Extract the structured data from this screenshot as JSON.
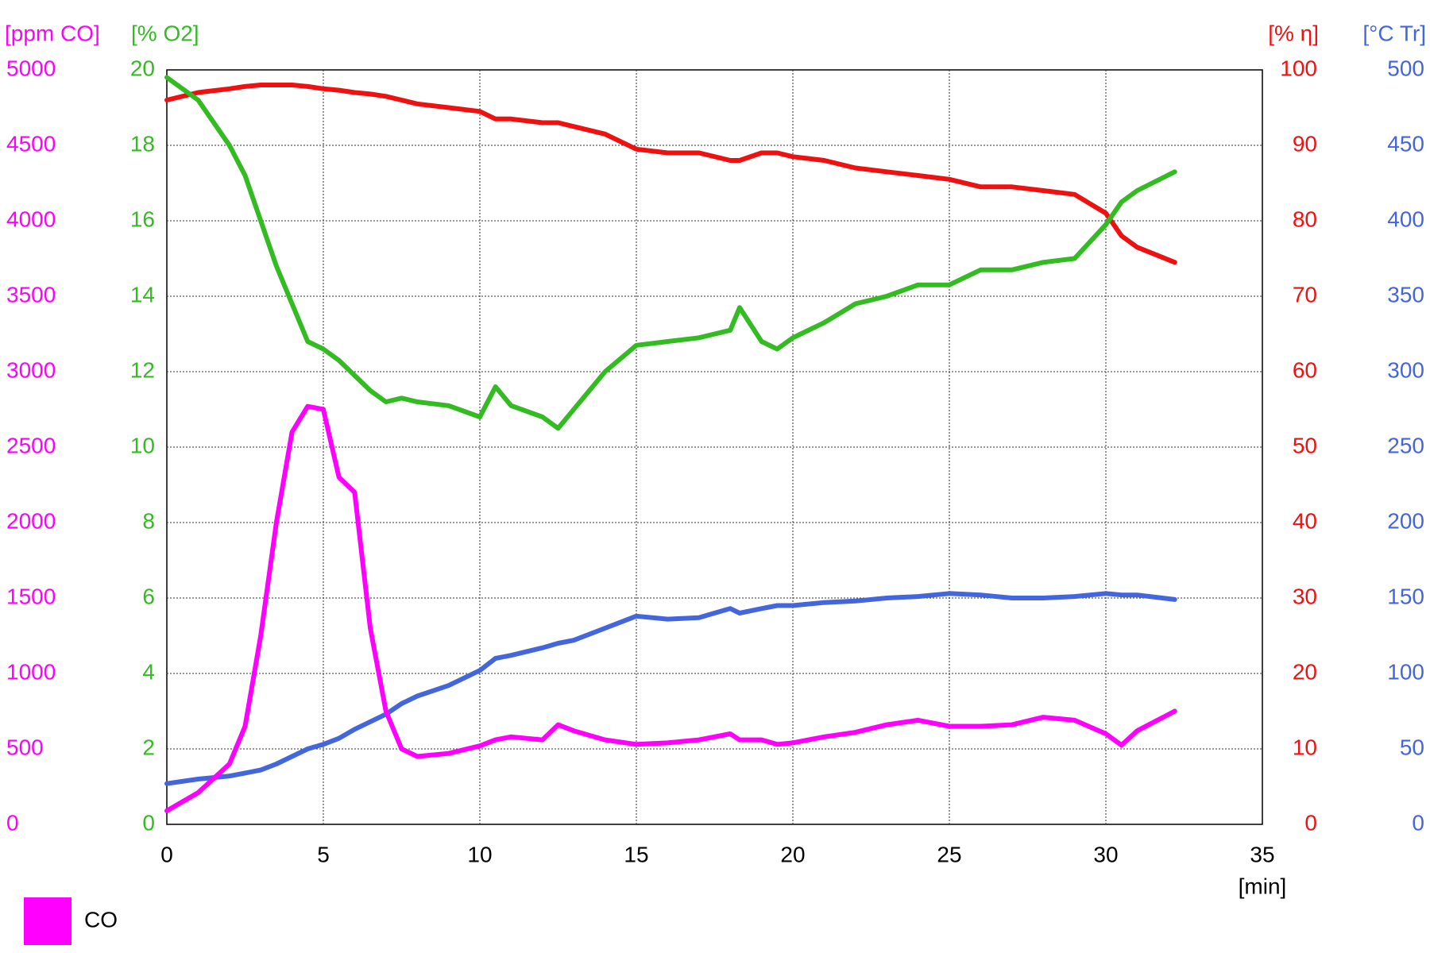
{
  "chart_data": {
    "type": "line",
    "x": [
      0,
      1,
      2,
      2.5,
      3,
      3.5,
      4,
      4.5,
      5,
      5.5,
      6,
      6.5,
      7,
      7.5,
      8,
      9,
      10,
      10.5,
      11,
      12,
      12.5,
      13,
      14,
      15,
      16,
      17,
      18,
      18.3,
      19,
      19.5,
      20,
      21,
      22,
      23,
      24,
      25,
      26,
      27,
      28,
      29,
      30,
      30.5,
      31,
      32.2
    ],
    "xlim": [
      0,
      35
    ],
    "xticks": [
      0,
      5,
      10,
      15,
      20,
      25,
      30,
      35
    ],
    "x_label": "[min]",
    "grid": true,
    "y_axes": [
      {
        "label": "[ppm CO]",
        "color": "#ff00ff",
        "ylim": [
          0,
          5000
        ],
        "yticks": [
          0,
          500,
          1000,
          1500,
          2000,
          2500,
          3000,
          3500,
          4000,
          4500,
          5000
        ]
      },
      {
        "label": "[% O2]",
        "color": "#33bb22",
        "ylim": [
          0,
          20
        ],
        "yticks": [
          0,
          2,
          4,
          6,
          8,
          10,
          12,
          14,
          16,
          18,
          20
        ]
      },
      {
        "label": "[% η]",
        "color": "#ee1111",
        "ylim": [
          0,
          100
        ],
        "yticks": [
          0,
          10,
          20,
          30,
          40,
          50,
          60,
          70,
          80,
          90,
          100
        ]
      },
      {
        "label": "[°C Tr]",
        "color": "#4466dd",
        "ylim": [
          0,
          500
        ],
        "yticks": [
          0,
          50,
          100,
          150,
          200,
          250,
          300,
          350,
          400,
          450,
          500
        ]
      }
    ],
    "series": [
      {
        "name": "CO",
        "color": "#ff00ff",
        "axis": 0,
        "values": [
          90,
          210,
          400,
          650,
          1250,
          2000,
          2600,
          2770,
          2750,
          2300,
          2200,
          1300,
          750,
          500,
          450,
          470,
          520,
          560,
          580,
          560,
          660,
          620,
          560,
          530,
          540,
          560,
          600,
          560,
          560,
          530,
          540,
          580,
          610,
          660,
          690,
          650,
          650,
          660,
          710,
          690,
          600,
          525,
          620,
          750
        ]
      },
      {
        "color": "#33bb22",
        "axis": 1,
        "values": [
          19.8,
          19.2,
          18.0,
          17.2,
          16.0,
          14.8,
          13.8,
          12.8,
          12.6,
          12.3,
          11.9,
          11.5,
          11.2,
          11.3,
          11.2,
          11.1,
          10.8,
          11.6,
          11.1,
          10.8,
          10.5,
          11.0,
          12.0,
          12.7,
          12.8,
          12.9,
          13.1,
          13.7,
          12.8,
          12.6,
          12.9,
          13.3,
          13.8,
          14.0,
          14.3,
          14.3,
          14.7,
          14.7,
          14.9,
          15.0,
          15.9,
          16.5,
          16.8,
          17.3
        ]
      },
      {
        "color": "#ee1111",
        "axis": 2,
        "values": [
          96,
          97,
          97.5,
          97.8,
          98,
          98,
          98,
          97.8,
          97.5,
          97.3,
          97,
          96.8,
          96.5,
          96,
          95.5,
          95,
          94.5,
          93.5,
          93.5,
          93,
          93,
          92.5,
          91.5,
          89.5,
          89,
          89,
          88,
          88,
          89,
          89,
          88.5,
          88,
          87,
          86.5,
          86,
          85.5,
          84.5,
          84.5,
          84,
          83.5,
          81,
          78,
          76.5,
          74.5
        ]
      },
      {
        "color": "#4466dd",
        "axis": 3,
        "values": [
          27,
          30,
          32,
          34,
          36,
          40,
          45,
          50,
          53,
          57,
          63,
          68,
          73,
          80,
          85,
          92,
          102,
          110,
          112,
          117,
          120,
          122,
          130,
          138,
          136,
          137,
          143,
          140,
          143,
          145,
          145,
          147,
          148,
          150,
          151,
          153,
          152,
          150,
          150,
          151,
          153,
          152,
          152,
          149
        ]
      }
    ]
  }
}
